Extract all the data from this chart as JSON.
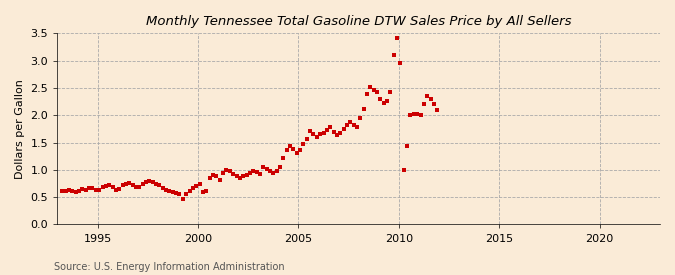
{
  "title": "Monthly Tennessee Total Gasoline DTW Sales Price by All Sellers",
  "ylabel": "Dollars per Gallon",
  "source": "Source: U.S. Energy Information Administration",
  "background_color": "#faebd7",
  "marker_color": "#cc0000",
  "xlim": [
    1993.0,
    2023.0
  ],
  "ylim": [
    0.0,
    3.5
  ],
  "yticks": [
    0.0,
    0.5,
    1.0,
    1.5,
    2.0,
    2.5,
    3.0,
    3.5
  ],
  "xticks": [
    1995,
    2000,
    2005,
    2010,
    2015,
    2020
  ],
  "data": [
    [
      1993.25,
      0.61
    ],
    [
      1993.42,
      0.62
    ],
    [
      1993.58,
      0.63
    ],
    [
      1993.75,
      0.61
    ],
    [
      1993.92,
      0.6
    ],
    [
      1994.08,
      0.62
    ],
    [
      1994.25,
      0.65
    ],
    [
      1994.42,
      0.64
    ],
    [
      1994.58,
      0.67
    ],
    [
      1994.75,
      0.66
    ],
    [
      1994.92,
      0.64
    ],
    [
      1995.08,
      0.63
    ],
    [
      1995.25,
      0.68
    ],
    [
      1995.42,
      0.7
    ],
    [
      1995.58,
      0.72
    ],
    [
      1995.75,
      0.69
    ],
    [
      1995.92,
      0.64
    ],
    [
      1996.08,
      0.65
    ],
    [
      1996.25,
      0.73
    ],
    [
      1996.42,
      0.75
    ],
    [
      1996.58,
      0.76
    ],
    [
      1996.75,
      0.73
    ],
    [
      1996.92,
      0.69
    ],
    [
      1997.08,
      0.68
    ],
    [
      1997.25,
      0.75
    ],
    [
      1997.42,
      0.78
    ],
    [
      1997.58,
      0.8
    ],
    [
      1997.75,
      0.78
    ],
    [
      1997.92,
      0.74
    ],
    [
      1998.08,
      0.72
    ],
    [
      1998.25,
      0.66
    ],
    [
      1998.42,
      0.63
    ],
    [
      1998.58,
      0.61
    ],
    [
      1998.75,
      0.6
    ],
    [
      1998.92,
      0.57
    ],
    [
      1999.08,
      0.55
    ],
    [
      1999.25,
      0.47
    ],
    [
      1999.42,
      0.56
    ],
    [
      1999.58,
      0.61
    ],
    [
      1999.75,
      0.66
    ],
    [
      1999.92,
      0.7
    ],
    [
      2000.08,
      0.74
    ],
    [
      2000.25,
      0.6
    ],
    [
      2000.42,
      0.62
    ],
    [
      2000.58,
      0.85
    ],
    [
      2000.75,
      0.9
    ],
    [
      2000.92,
      0.88
    ],
    [
      2001.08,
      0.82
    ],
    [
      2001.25,
      0.95
    ],
    [
      2001.42,
      0.99
    ],
    [
      2001.58,
      0.97
    ],
    [
      2001.75,
      0.93
    ],
    [
      2001.92,
      0.88
    ],
    [
      2002.08,
      0.86
    ],
    [
      2002.25,
      0.88
    ],
    [
      2002.42,
      0.91
    ],
    [
      2002.58,
      0.94
    ],
    [
      2002.75,
      0.98
    ],
    [
      2002.92,
      0.96
    ],
    [
      2003.08,
      0.93
    ],
    [
      2003.25,
      1.05
    ],
    [
      2003.42,
      1.02
    ],
    [
      2003.58,
      0.97
    ],
    [
      2003.75,
      0.95
    ],
    [
      2003.92,
      0.98
    ],
    [
      2004.08,
      1.06
    ],
    [
      2004.25,
      1.22
    ],
    [
      2004.42,
      1.37
    ],
    [
      2004.58,
      1.43
    ],
    [
      2004.75,
      1.38
    ],
    [
      2004.92,
      1.3
    ],
    [
      2005.08,
      1.36
    ],
    [
      2005.25,
      1.47
    ],
    [
      2005.42,
      1.57
    ],
    [
      2005.58,
      1.72
    ],
    [
      2005.75,
      1.65
    ],
    [
      2005.92,
      1.6
    ],
    [
      2006.08,
      1.65
    ],
    [
      2006.25,
      1.68
    ],
    [
      2006.42,
      1.73
    ],
    [
      2006.58,
      1.78
    ],
    [
      2006.75,
      1.7
    ],
    [
      2006.92,
      1.63
    ],
    [
      2007.08,
      1.68
    ],
    [
      2007.25,
      1.75
    ],
    [
      2007.42,
      1.83
    ],
    [
      2007.58,
      1.88
    ],
    [
      2007.75,
      1.83
    ],
    [
      2007.92,
      1.78
    ],
    [
      2008.08,
      1.95
    ],
    [
      2008.25,
      2.12
    ],
    [
      2008.42,
      2.38
    ],
    [
      2008.58,
      2.52
    ],
    [
      2008.75,
      2.47
    ],
    [
      2008.92,
      2.42
    ],
    [
      2009.08,
      2.3
    ],
    [
      2009.25,
      2.22
    ],
    [
      2009.42,
      2.27
    ],
    [
      2009.58,
      2.42
    ],
    [
      2009.75,
      3.1
    ],
    [
      2009.92,
      3.42
    ],
    [
      2010.08,
      2.95
    ],
    [
      2010.25,
      1.0
    ],
    [
      2010.42,
      1.43
    ],
    [
      2010.58,
      2.0
    ],
    [
      2010.75,
      2.03
    ],
    [
      2010.92,
      2.02
    ],
    [
      2011.08,
      2.0
    ],
    [
      2011.25,
      2.2
    ],
    [
      2011.42,
      2.35
    ],
    [
      2011.58,
      2.3
    ],
    [
      2011.75,
      2.2
    ],
    [
      2011.92,
      2.1
    ]
  ]
}
